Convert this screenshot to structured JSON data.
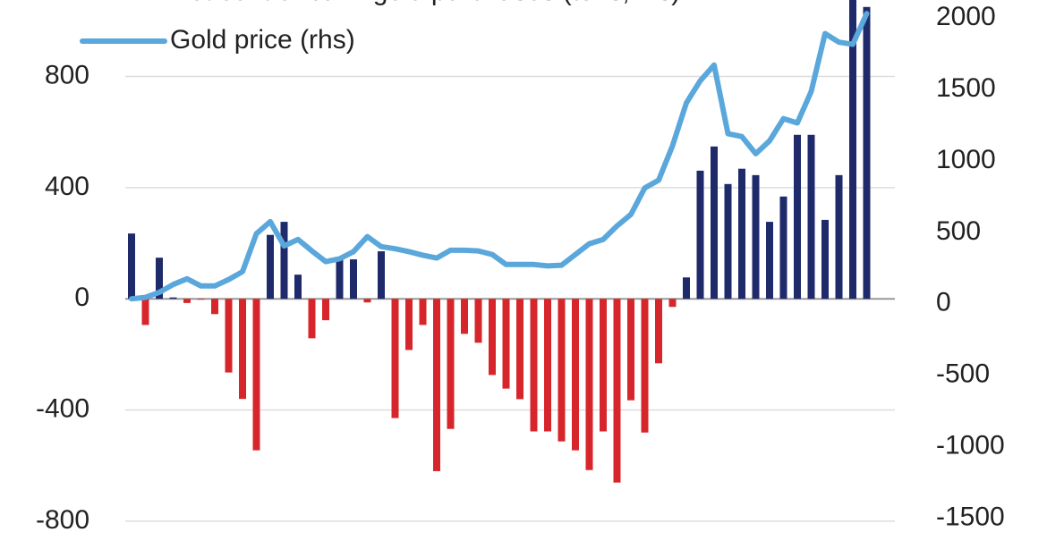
{
  "chart_data": {
    "type": "bar_line",
    "series": [
      {
        "name": "Net central bank gold purchases (tons, lhs)",
        "type": "bar",
        "color": "#1f2a6b",
        "negative_color": "#d7262b",
        "values": [
          235,
          -94,
          148,
          5,
          -15,
          -3,
          -55,
          -265,
          -360,
          -545,
          230,
          277,
          87,
          -142,
          -77,
          142,
          142,
          -13,
          171,
          -429,
          -184,
          -94,
          -620,
          -468,
          -126,
          -158,
          -274,
          -323,
          -361,
          -477,
          -477,
          -513,
          -545,
          -616,
          -477,
          -661,
          -365,
          -481,
          -232,
          -29,
          77,
          461,
          548,
          413,
          468,
          445,
          277,
          368,
          590,
          590,
          284,
          445,
          1080,
          1050
        ]
      },
      {
        "name": "Gold price (rhs)",
        "type": "line",
        "axis": "y2",
        "color": "#5aa7dc",
        "values": [
          35,
          45,
          80,
          135,
          175,
          125,
          125,
          170,
          225,
          490,
          575,
          405,
          450,
          370,
          295,
          315,
          365,
          470,
          400,
          385,
          365,
          340,
          320,
          375,
          375,
          370,
          345,
          275,
          275,
          275,
          265,
          270,
          345,
          420,
          450,
          545,
          625,
          810,
          865,
          1105,
          1405,
          1560,
          1670,
          1190,
          1170,
          1050,
          1140,
          1295,
          1265,
          1485,
          1890,
          1830,
          1815,
          2030
        ]
      }
    ],
    "ylim": [
      -900,
      1075
    ],
    "yticks": [
      -800,
      -400,
      0,
      400,
      800
    ],
    "y2lim": [
      -1715,
      2125
    ],
    "y2ticks": [
      -1500,
      -1000,
      -500,
      0,
      500,
      1000,
      1500,
      2000
    ],
    "grid": true,
    "legend": "top-left"
  }
}
